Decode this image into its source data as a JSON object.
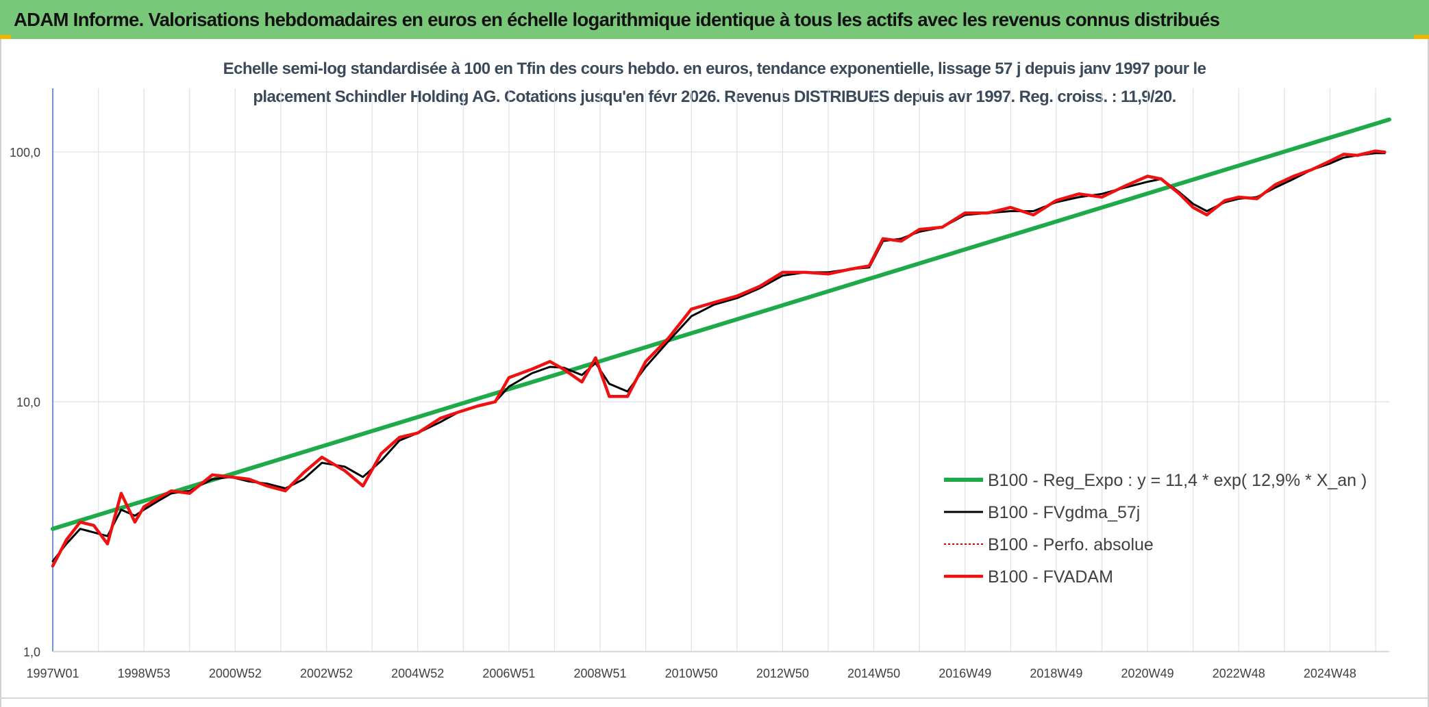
{
  "header": {
    "title": "ADAM Informe. Valorisations hebdomadaires en euros en échelle logarithmique identique à tous les actifs avec les revenus connus distribués"
  },
  "colors": {
    "banner_bg": "#79c879",
    "corner_accent": "#f2b300",
    "regression": "#1faa4a",
    "moving_average": "#000000",
    "performance": "#cc0000",
    "fvadam": "#ee1111",
    "gridline": "#dde3ea",
    "axis": "#4472c4"
  },
  "chart_data": {
    "type": "line",
    "title": "Echelle semi-log standardisée à 100 en Tfin des cours hebdo. en euros, tendance exponentielle, lissage 57 j depuis janv 1997 pour le",
    "subtitle": "placement Schindler Holding AG. Cotations jusqu'en févr 2026. Revenus DISTRIBUES depuis avr 1997. Reg. croiss. : 11,9/20.",
    "xlabel": "",
    "ylabel": "",
    "y_scale": "log",
    "ylim": [
      1,
      180
    ],
    "xlim": [
      1997.0,
      2026.3
    ],
    "grid": true,
    "legend_position": "bottom-right",
    "y_ticks": [
      {
        "value": 1,
        "label": "1,0"
      },
      {
        "value": 10,
        "label": "10,0"
      },
      {
        "value": 100,
        "label": "100,0"
      }
    ],
    "x_ticks": [
      {
        "value": 1997.0,
        "label": "1997W01"
      },
      {
        "value": 1999.0,
        "label": "1998W53"
      },
      {
        "value": 2001.0,
        "label": "2000W52"
      },
      {
        "value": 2003.0,
        "label": "2002W52"
      },
      {
        "value": 2005.0,
        "label": "2004W52"
      },
      {
        "value": 2007.0,
        "label": "2006W51"
      },
      {
        "value": 2009.0,
        "label": "2008W51"
      },
      {
        "value": 2011.0,
        "label": "2010W50"
      },
      {
        "value": 2013.0,
        "label": "2012W50"
      },
      {
        "value": 2015.0,
        "label": "2014W50"
      },
      {
        "value": 2017.0,
        "label": "2016W49"
      },
      {
        "value": 2019.0,
        "label": "2018W49"
      },
      {
        "value": 2021.0,
        "label": "2020W49"
      },
      {
        "value": 2023.0,
        "label": "2022W48"
      },
      {
        "value": 2025.0,
        "label": "2024W48"
      }
    ],
    "series": [
      {
        "name": "B100 - Reg_Expo : y = 11,4 * exp( 12,9% *  X_an )",
        "kind": "regression",
        "x": [
          1997.0,
          2026.3
        ],
        "y": [
          3.1,
          135
        ]
      },
      {
        "name": "B100 - FVgdma_57j",
        "kind": "moving_average",
        "x": [
          1997.0,
          1997.3,
          1997.6,
          1997.9,
          1998.2,
          1998.5,
          1998.8,
          1999.0,
          1999.3,
          1999.6,
          2000.0,
          2000.5,
          2000.9,
          2001.3,
          2001.7,
          2002.1,
          2002.5,
          2002.9,
          2003.4,
          2003.8,
          2004.2,
          2004.6,
          2005.0,
          2005.5,
          2005.9,
          2006.3,
          2006.7,
          2007.0,
          2007.5,
          2007.9,
          2008.2,
          2008.6,
          2008.9,
          2009.2,
          2009.6,
          2010.0,
          2010.5,
          2011.0,
          2011.5,
          2012.0,
          2012.5,
          2013.0,
          2013.5,
          2014.0,
          2014.5,
          2014.9,
          2015.2,
          2015.6,
          2016.0,
          2016.5,
          2017.0,
          2017.5,
          2018.0,
          2018.5,
          2019.0,
          2019.5,
          2020.0,
          2020.5,
          2021.0,
          2021.3,
          2021.7,
          2022.0,
          2022.3,
          2022.7,
          2023.0,
          2023.4,
          2023.8,
          2024.2,
          2024.6,
          2025.0,
          2025.3,
          2025.6,
          2026.0,
          2026.2
        ],
        "y": [
          2.3,
          2.7,
          3.1,
          3.0,
          2.9,
          3.7,
          3.5,
          3.7,
          4.0,
          4.3,
          4.4,
          4.9,
          5.0,
          4.8,
          4.7,
          4.5,
          4.9,
          5.7,
          5.5,
          5.0,
          5.8,
          7.0,
          7.5,
          8.3,
          9.1,
          9.6,
          10.0,
          11.5,
          13.0,
          13.8,
          13.7,
          12.8,
          14.3,
          11.8,
          11.0,
          13.8,
          17.5,
          22.0,
          24.5,
          26.0,
          28.5,
          32.0,
          33.0,
          33.0,
          34.0,
          34.5,
          44.0,
          45.0,
          48.0,
          50.0,
          56.0,
          57.0,
          58.0,
          58.0,
          63.0,
          66.0,
          68.0,
          72.0,
          76.0,
          78.0,
          69.0,
          62.0,
          58.0,
          63.0,
          65.0,
          66.0,
          72.0,
          78.0,
          85.0,
          90.0,
          95.0,
          97.0,
          99.0,
          99.0
        ]
      },
      {
        "name": "B100 - Perfo. absolue",
        "kind": "performance",
        "x": [
          1997.0,
          1997.3,
          1997.6,
          1997.9,
          1998.2,
          1998.5,
          1998.8,
          1999.0,
          1999.3,
          1999.6,
          2000.0,
          2000.5,
          2000.9,
          2001.3,
          2001.7,
          2002.1,
          2002.5,
          2002.9,
          2003.4,
          2003.8,
          2004.2,
          2004.6,
          2005.0,
          2005.5,
          2005.9,
          2006.3,
          2006.7,
          2007.0,
          2007.5,
          2007.9,
          2008.2,
          2008.6,
          2008.9,
          2009.2,
          2009.6,
          2010.0,
          2010.5,
          2011.0,
          2011.5,
          2012.0,
          2012.5,
          2013.0,
          2013.5,
          2014.0,
          2014.5,
          2014.9,
          2015.2,
          2015.6,
          2016.0,
          2016.5,
          2017.0,
          2017.5,
          2018.0,
          2018.5,
          2019.0,
          2019.5,
          2020.0,
          2020.5,
          2021.0,
          2021.3,
          2021.7,
          2022.0,
          2022.3,
          2022.7,
          2023.0,
          2023.4,
          2023.8,
          2024.2,
          2024.6,
          2025.0,
          2025.3,
          2025.6,
          2026.0,
          2026.2
        ],
        "y": [
          2.2,
          2.8,
          3.3,
          3.2,
          2.7,
          4.3,
          3.3,
          3.8,
          4.1,
          4.4,
          4.3,
          5.1,
          5.0,
          4.9,
          4.6,
          4.4,
          5.2,
          6.0,
          5.3,
          4.6,
          6.2,
          7.2,
          7.5,
          8.6,
          9.1,
          9.6,
          10.0,
          12.5,
          13.5,
          14.5,
          13.5,
          12.0,
          15.0,
          10.5,
          10.5,
          14.5,
          18.0,
          23.5,
          25.0,
          26.5,
          29.0,
          33.0,
          33.0,
          32.5,
          34.0,
          35.0,
          45.0,
          44.0,
          49.0,
          50.0,
          57.0,
          57.0,
          60.0,
          56.0,
          64.0,
          68.0,
          66.0,
          73.0,
          80.0,
          78.0,
          68.0,
          60.0,
          56.0,
          64.0,
          66.0,
          65.0,
          74.0,
          80.0,
          85.0,
          92.0,
          98.0,
          97.0,
          101.0,
          100.0
        ]
      },
      {
        "name": "B100 - FVADAM",
        "kind": "fvadam",
        "x": [
          1997.0,
          1997.3,
          1997.6,
          1997.9,
          1998.2,
          1998.5,
          1998.8,
          1999.0,
          1999.3,
          1999.6,
          2000.0,
          2000.5,
          2000.9,
          2001.3,
          2001.7,
          2002.1,
          2002.5,
          2002.9,
          2003.4,
          2003.8,
          2004.2,
          2004.6,
          2005.0,
          2005.5,
          2005.9,
          2006.3,
          2006.7,
          2007.0,
          2007.5,
          2007.9,
          2008.2,
          2008.6,
          2008.9,
          2009.2,
          2009.6,
          2010.0,
          2010.5,
          2011.0,
          2011.5,
          2012.0,
          2012.5,
          2013.0,
          2013.5,
          2014.0,
          2014.5,
          2014.9,
          2015.2,
          2015.6,
          2016.0,
          2016.5,
          2017.0,
          2017.5,
          2018.0,
          2018.5,
          2019.0,
          2019.5,
          2020.0,
          2020.5,
          2021.0,
          2021.3,
          2021.7,
          2022.0,
          2022.3,
          2022.7,
          2023.0,
          2023.4,
          2023.8,
          2024.2,
          2024.6,
          2025.0,
          2025.3,
          2025.6,
          2026.0,
          2026.2
        ],
        "y": [
          2.2,
          2.8,
          3.3,
          3.2,
          2.7,
          4.3,
          3.3,
          3.8,
          4.1,
          4.4,
          4.3,
          5.1,
          5.0,
          4.9,
          4.6,
          4.4,
          5.2,
          6.0,
          5.3,
          4.6,
          6.2,
          7.2,
          7.5,
          8.6,
          9.1,
          9.6,
          10.0,
          12.5,
          13.5,
          14.5,
          13.5,
          12.0,
          15.0,
          10.5,
          10.5,
          14.5,
          18.0,
          23.5,
          25.0,
          26.5,
          29.0,
          33.0,
          33.0,
          32.5,
          34.0,
          35.0,
          45.0,
          44.0,
          49.0,
          50.0,
          57.0,
          57.0,
          60.0,
          56.0,
          64.0,
          68.0,
          66.0,
          73.0,
          80.0,
          78.0,
          68.0,
          60.0,
          56.0,
          64.0,
          66.0,
          65.0,
          74.0,
          80.0,
          85.0,
          92.0,
          98.0,
          97.0,
          101.0,
          100.0
        ]
      }
    ]
  }
}
